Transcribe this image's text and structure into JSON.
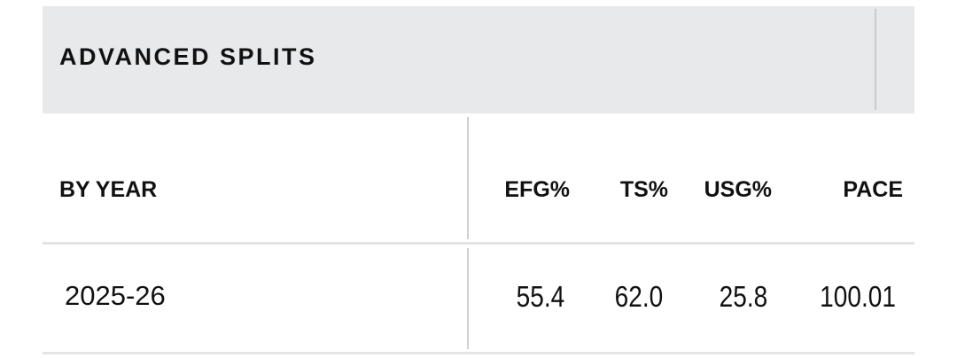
{
  "header": {
    "title": "ADVANCED SPLITS"
  },
  "table": {
    "columns": [
      "BY YEAR",
      "EFG%",
      "TS%",
      "USG%",
      "PACE"
    ],
    "rows": [
      [
        "2025-26",
        "55.4",
        "62.0",
        "25.8",
        "100.01"
      ]
    ]
  }
}
